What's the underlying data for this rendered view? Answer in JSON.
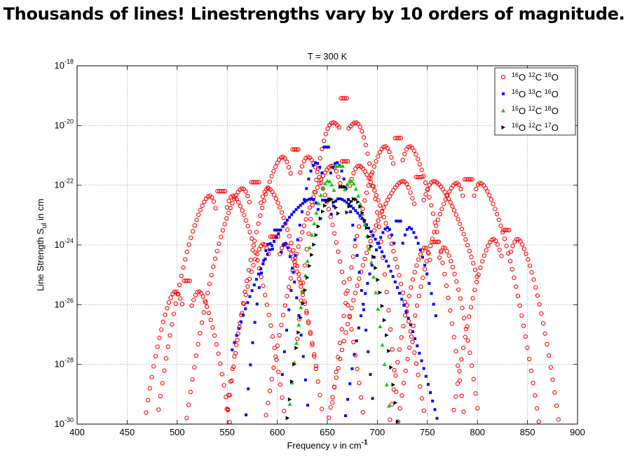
{
  "headline": "Thousands of lines!  Linestrengths vary by 10 orders of magnitude.",
  "chart_data": {
    "type": "scatter",
    "title": "T = 300 K",
    "xlabel": "Frequency ν in cm",
    "xlabel_sup": "-1",
    "ylabel": "Line Strength S",
    "ylabel_sub": "ul",
    "ylabel_suffix": " in cm",
    "xlim": [
      400,
      900
    ],
    "ylim_log10": [
      -30,
      -18
    ],
    "yscale": "log",
    "grid": true,
    "legend_position": "top-right",
    "x_ticks": [
      400,
      450,
      500,
      550,
      600,
      650,
      700,
      750,
      800,
      850,
      900
    ],
    "y_ticks": [
      -30,
      -28,
      -26,
      -24,
      -22,
      -20,
      -18
    ],
    "series": [
      {
        "name": "16O 12C 16O",
        "legend": [
          [
            "16",
            "O"
          ],
          [
            "12",
            "C"
          ],
          [
            "16",
            "O"
          ]
        ],
        "color": "#ff0000",
        "marker": "circle",
        "bands": [
          {
            "center": 667,
            "bc": 20,
            "bmin": 3e-05,
            "peak": 1.3e-19,
            "xmin": 620,
            "xmax": 720
          },
          {
            "center": 668,
            "bc": 14,
            "bmin": 3e-05,
            "peak": 1e-21,
            "xmin": 585,
            "xmax": 755
          },
          {
            "center": 720,
            "bc": 14,
            "bmin": 3e-05,
            "peak": 6e-21,
            "xmin": 655,
            "xmax": 790
          },
          {
            "center": 618,
            "bc": 14,
            "bmin": 3e-05,
            "peak": 2.5e-21,
            "xmin": 545,
            "xmax": 690
          },
          {
            "center": 741,
            "bc": 16,
            "bmin": 3e-05,
            "peak": 3e-22,
            "xmin": 640,
            "xmax": 800
          },
          {
            "center": 578,
            "bc": 14,
            "bmin": 3e-05,
            "peak": 2e-22,
            "xmin": 500,
            "xmax": 640
          },
          {
            "center": 791,
            "bc": 12,
            "bmin": 3e-05,
            "peak": 2.5e-22,
            "xmin": 715,
            "xmax": 870
          },
          {
            "center": 544,
            "bc": 12,
            "bmin": 3e-05,
            "peak": 1e-22,
            "xmin": 470,
            "xmax": 610
          },
          {
            "center": 828,
            "bc": 14,
            "bmin": 3e-05,
            "peak": 5e-24,
            "xmin": 765,
            "xmax": 895
          },
          {
            "center": 597,
            "bc": 12,
            "bmin": 3e-05,
            "peak": 3e-24,
            "xmin": 540,
            "xmax": 660
          },
          {
            "center": 510,
            "bc": 14,
            "bmin": 3e-05,
            "peak": 1e-25,
            "xmin": 448,
            "xmax": 572
          },
          {
            "center": 757,
            "bc": 10,
            "bmin": 3e-05,
            "peak": 2e-24,
            "xmin": 705,
            "xmax": 815
          }
        ]
      },
      {
        "name": "16O 13C 16O",
        "legend": [
          [
            "16",
            "O"
          ],
          [
            "13",
            "C"
          ],
          [
            "16",
            "O"
          ]
        ],
        "color": "#0000ff",
        "marker": "square",
        "bands": [
          {
            "center": 649,
            "bc": 14,
            "bmin": 3e-05,
            "peak": 3e-21,
            "xmin": 605,
            "xmax": 700
          },
          {
            "center": 648,
            "bc": 12,
            "bmin": 3e-05,
            "peak": 5e-23,
            "xmin": 555,
            "xmax": 780
          },
          {
            "center": 721,
            "bc": 12,
            "bmin": 3e-05,
            "peak": 1e-23,
            "xmin": 655,
            "xmax": 760
          },
          {
            "center": 600,
            "bc": 10,
            "bmin": 3e-05,
            "peak": 5e-24,
            "xmin": 560,
            "xmax": 640
          }
        ]
      },
      {
        "name": "16O 12C 18O",
        "legend": [
          [
            "16",
            "O"
          ],
          [
            "12",
            "C"
          ],
          [
            "18",
            "O"
          ]
        ],
        "color": "#00cc00",
        "marker": "triangle-up",
        "bands": [
          {
            "center": 662,
            "bc": 15,
            "bmin": 3e-05,
            "peak": 7e-22,
            "xmin": 606,
            "xmax": 718
          }
        ]
      },
      {
        "name": "16O 12C 17O",
        "legend": [
          [
            "16",
            "O"
          ],
          [
            "12",
            "C"
          ],
          [
            "17",
            "O"
          ]
        ],
        "color": "#000000",
        "marker": "triangle-right",
        "bands": [
          {
            "center": 665,
            "bc": 15,
            "bmin": 3e-05,
            "peak": 1.4e-22,
            "xmin": 608,
            "xmax": 728
          }
        ]
      }
    ]
  }
}
